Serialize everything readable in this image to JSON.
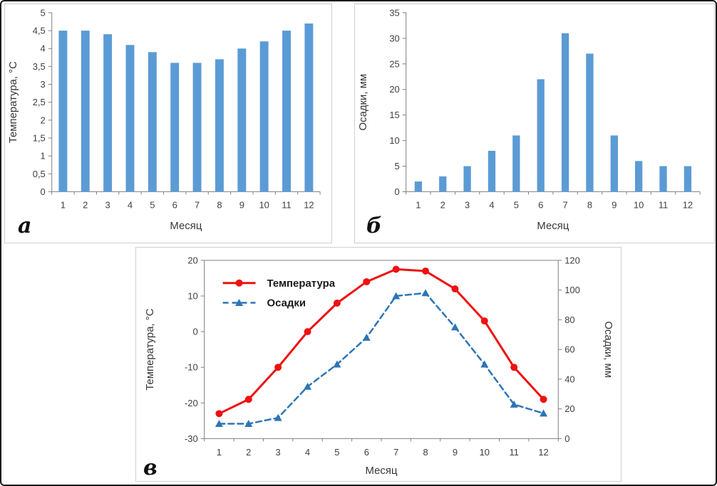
{
  "panels": [
    {
      "label": "а"
    },
    {
      "label": "б"
    },
    {
      "label": "в"
    }
  ],
  "colors": {
    "bar_blue": "#5b9bd5",
    "line_red": "#ee1111",
    "line_blue": "#2e75b6",
    "axis_gray": "#7f7f7f"
  },
  "chart_data": [
    {
      "id": "chart-a",
      "type": "bar",
      "panel_label": "а",
      "title": "",
      "xlabel": "Месяц",
      "ylabel": "Температура, °С",
      "categories": [
        "1",
        "2",
        "3",
        "4",
        "5",
        "6",
        "7",
        "8",
        "9",
        "10",
        "11",
        "12"
      ],
      "values": [
        4.5,
        4.5,
        4.4,
        4.1,
        3.9,
        3.6,
        3.6,
        3.7,
        4.0,
        4.2,
        4.5,
        4.7
      ],
      "ylim": [
        0,
        5
      ],
      "ytick_values": [
        0,
        0.5,
        1,
        1.5,
        2,
        2.5,
        3,
        3.5,
        4,
        4.5,
        5
      ],
      "ytick_labels": [
        "0",
        "0,5",
        "1",
        "1,5",
        "2",
        "2,5",
        "3",
        "3,5",
        "4",
        "4,5",
        "5"
      ],
      "bar_color": "#5b9bd5",
      "grid": false,
      "legend": "none"
    },
    {
      "id": "chart-b",
      "type": "bar",
      "panel_label": "б",
      "title": "",
      "xlabel": "Месяц",
      "ylabel": "Осадки, мм",
      "categories": [
        "1",
        "2",
        "3",
        "4",
        "5",
        "6",
        "7",
        "8",
        "9",
        "10",
        "11",
        "12"
      ],
      "values": [
        2,
        3,
        5,
        8,
        11,
        22,
        31,
        27,
        11,
        6,
        5,
        5
      ],
      "ylim": [
        0,
        35
      ],
      "ytick_values": [
        0,
        5,
        10,
        15,
        20,
        25,
        30,
        35
      ],
      "ytick_labels": [
        "0",
        "5",
        "10",
        "15",
        "20",
        "25",
        "30",
        "35"
      ],
      "bar_color": "#5b9bd5",
      "grid": false,
      "legend": "none"
    },
    {
      "id": "chart-c",
      "type": "line",
      "panel_label": "в",
      "title": "",
      "xlabel": "Месяц",
      "categories": [
        "1",
        "2",
        "3",
        "4",
        "5",
        "6",
        "7",
        "8",
        "9",
        "10",
        "11",
        "12"
      ],
      "left_axis": {
        "label": "Температура, °С",
        "lim": [
          -30,
          20
        ],
        "tick_values": [
          -30,
          -20,
          -10,
          0,
          10,
          20
        ],
        "tick_labels": [
          "-30",
          "-20",
          "-10",
          "0",
          "10",
          "20"
        ]
      },
      "right_axis": {
        "label": "Осадки, мм",
        "lim": [
          0,
          120
        ],
        "tick_values": [
          0,
          20,
          40,
          60,
          80,
          100,
          120
        ],
        "tick_labels": [
          "0",
          "20",
          "40",
          "60",
          "80",
          "100",
          "120"
        ]
      },
      "series": [
        {
          "name": "Температура",
          "axis": "left",
          "color": "#ee1111",
          "style": "solid",
          "marker": "circle",
          "values": [
            -23,
            -19,
            -10,
            0,
            8,
            14,
            17.5,
            17,
            12,
            3,
            -10,
            -19
          ]
        },
        {
          "name": "Осадки",
          "axis": "right",
          "color": "#2e75b6",
          "style": "dashed",
          "marker": "triangle",
          "values": [
            10,
            10,
            14,
            35,
            50,
            68,
            96,
            98,
            75,
            50,
            23,
            17
          ]
        }
      ],
      "legend_position": "top-left",
      "grid": false
    }
  ]
}
